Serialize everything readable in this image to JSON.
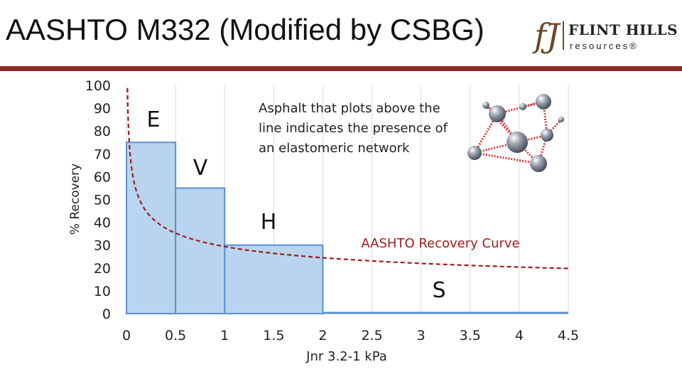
{
  "slide": {
    "title": "AASHTO M332 (Modified by CSBG)"
  },
  "logo": {
    "mark": "fJ",
    "name": "FLINT HILLS",
    "sub": "resources®"
  },
  "chart_data": {
    "type": "area",
    "title": "",
    "xlabel": "Jnr 3.2-1 kPa",
    "ylabel": "% Recovery",
    "xlim": [
      0,
      4.5
    ],
    "ylim": [
      0,
      100
    ],
    "x_ticks": [
      "0",
      "0.5",
      "1",
      "1.5",
      "2",
      "2.5",
      "3",
      "3.5",
      "4",
      "4.5"
    ],
    "y_ticks": [
      "0",
      "10",
      "20",
      "30",
      "40",
      "50",
      "60",
      "70",
      "80",
      "90",
      "100"
    ],
    "grade_steps": [
      {
        "label": "E",
        "x_start": 0,
        "x_end": 0.5,
        "recovery": 75
      },
      {
        "label": "V",
        "x_start": 0.5,
        "x_end": 1.0,
        "recovery": 55
      },
      {
        "label": "H",
        "x_start": 1.0,
        "x_end": 2.0,
        "recovery": 30
      },
      {
        "label": "S",
        "x_start": 2.0,
        "x_end": 4.5,
        "recovery": 0
      }
    ],
    "recovery_curve": {
      "name": "AASHTO Recovery Curve",
      "formula": "y = 29.371 * x^-0.2633",
      "x_min": 0.01,
      "x_max": 4.5
    },
    "annotations": {
      "curve_label": "AASHTO Recovery Curve",
      "note": [
        "Asphalt that plots above the",
        "line indicates the presence of",
        "an elastomeric network"
      ]
    },
    "colors": {
      "fill": "#b8d4ee",
      "edge": "#5b8fcf",
      "curve": "#9e1b1b",
      "grid": "#d9d9d9"
    }
  }
}
